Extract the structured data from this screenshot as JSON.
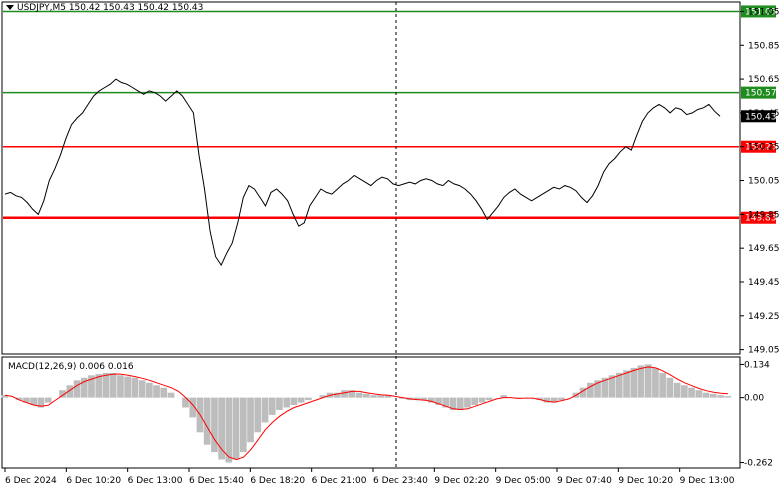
{
  "header": {
    "symbol_line": "USDJPY,M5  150.42 150.43 150.42 150.43",
    "macd_label": "MACD(12,26,9) 0.006 0.016"
  },
  "colors": {
    "green_line": "#1e8c1e",
    "red_line": "#ff0000",
    "price_line": "#000000",
    "macd_hist": "#bdbdbd",
    "signal_line": "#ff0000",
    "grid": "#c8c8c8",
    "current_price_tag_bg": "#000000"
  },
  "price_axis": {
    "ticks": [
      "151.05",
      "150.85",
      "150.65",
      "150.45",
      "150.25",
      "150.05",
      "149.85",
      "149.65",
      "149.45",
      "149.25",
      "149.05"
    ],
    "tick_values": [
      151.05,
      150.85,
      150.65,
      150.45,
      150.25,
      150.05,
      149.85,
      149.65,
      149.45,
      149.25,
      149.05
    ],
    "range": [
      149.03,
      151.1
    ]
  },
  "levels": [
    {
      "label": "151.05",
      "value": 151.05,
      "color": "#1e8c1e",
      "kind": "green"
    },
    {
      "label": "150.57",
      "value": 150.57,
      "color": "#1e8c1e",
      "kind": "green"
    },
    {
      "label": "150.25",
      "value": 150.25,
      "color": "#ff0000",
      "kind": "red"
    },
    {
      "label": "149.83",
      "value": 149.83,
      "color": "#ff0000",
      "kind": "red"
    }
  ],
  "current_price": {
    "label": "150.43",
    "value": 150.43
  },
  "macd_axis": {
    "ticks": [
      "0.134",
      "0.00",
      "-0.262"
    ],
    "tick_values": [
      0.134,
      0.0,
      -0.262
    ],
    "range": [
      -0.28,
      0.16
    ]
  },
  "time_axis": {
    "labels": [
      "6 Dec 2024",
      "6 Dec 10:20",
      "6 Dec 13:00",
      "6 Dec 15:40",
      "6 Dec 18:20",
      "6 Dec 21:00",
      "6 Dec 23:40",
      "9 Dec 02:20",
      "9 Dec 05:00",
      "9 Dec 07:40",
      "9 Dec 10:20",
      "9 Dec 13:00"
    ]
  },
  "chart_data": {
    "type": "line",
    "title": "USDJPY,M5",
    "series": [
      {
        "name": "USDJPY",
        "values": [
          149.97,
          149.98,
          149.96,
          149.95,
          149.92,
          149.88,
          149.85,
          149.93,
          150.05,
          150.12,
          150.2,
          150.3,
          150.38,
          150.42,
          150.45,
          150.5,
          150.55,
          150.58,
          150.6,
          150.62,
          150.65,
          150.63,
          150.62,
          150.6,
          150.58,
          150.56,
          150.58,
          150.57,
          150.55,
          150.52,
          150.55,
          150.58,
          150.55,
          150.5,
          150.45,
          150.2,
          150.0,
          149.75,
          149.6,
          149.55,
          149.62,
          149.68,
          149.8,
          149.95,
          150.02,
          150.0,
          149.95,
          149.9,
          149.98,
          150.0,
          149.97,
          149.93,
          149.85,
          149.78,
          149.8,
          149.9,
          149.95,
          150.0,
          149.98,
          149.97,
          150.0,
          150.03,
          150.05,
          150.08,
          150.06,
          150.04,
          150.02,
          150.05,
          150.07,
          150.06,
          150.03,
          150.02,
          150.03,
          150.04,
          150.03,
          150.05,
          150.06,
          150.05,
          150.03,
          150.02,
          150.05,
          150.03,
          150.02,
          150.0,
          149.97,
          149.93,
          149.88,
          149.82,
          149.86,
          149.9,
          149.95,
          149.98,
          150.0,
          149.97,
          149.95,
          149.93,
          149.95,
          149.97,
          149.99,
          150.01,
          150.0,
          150.02,
          150.01,
          149.99,
          149.95,
          149.92,
          149.96,
          150.02,
          150.1,
          150.15,
          150.18,
          150.22,
          150.25,
          150.23,
          150.32,
          150.4,
          150.45,
          150.48,
          150.5,
          150.48,
          150.45,
          150.48,
          150.47,
          150.44,
          150.45,
          150.47,
          150.48,
          150.5,
          150.46,
          150.43
        ]
      },
      {
        "name": "MACD",
        "values": [
          0.01,
          0.0,
          -0.01,
          -0.02,
          -0.03,
          -0.04,
          -0.02,
          0.0,
          0.03,
          0.05,
          0.07,
          0.08,
          0.09,
          0.095,
          0.1,
          0.1,
          0.09,
          0.085,
          0.08,
          0.07,
          0.06,
          0.05,
          0.04,
          0.02,
          0.0,
          -0.04,
          -0.08,
          -0.14,
          -0.19,
          -0.22,
          -0.25,
          -0.262,
          -0.25,
          -0.22,
          -0.18,
          -0.14,
          -0.1,
          -0.07,
          -0.05,
          -0.04,
          -0.03,
          -0.02,
          -0.01,
          0.0,
          0.01,
          0.02,
          0.02,
          0.03,
          0.03,
          0.02,
          0.015,
          0.01,
          0.01,
          0.01,
          0.0,
          -0.005,
          -0.01,
          -0.01,
          -0.01,
          -0.02,
          -0.03,
          -0.04,
          -0.05,
          -0.05,
          -0.04,
          -0.03,
          -0.02,
          -0.01,
          0.0,
          0.01,
          0.0,
          -0.005,
          0.0,
          0.0,
          -0.01,
          -0.02,
          -0.02,
          -0.01,
          0.0,
          0.02,
          0.04,
          0.06,
          0.07,
          0.08,
          0.09,
          0.1,
          0.11,
          0.12,
          0.13,
          0.134,
          0.12,
          0.1,
          0.08,
          0.06,
          0.05,
          0.04,
          0.03,
          0.02,
          0.015,
          0.01,
          0.006
        ]
      },
      {
        "name": "Signal",
        "values": [
          0.01,
          0.005,
          -0.01,
          -0.02,
          -0.03,
          -0.035,
          -0.03,
          -0.01,
          0.01,
          0.03,
          0.05,
          0.065,
          0.075,
          0.085,
          0.09,
          0.095,
          0.095,
          0.09,
          0.085,
          0.078,
          0.07,
          0.06,
          0.05,
          0.04,
          0.025,
          0.0,
          -0.03,
          -0.07,
          -0.12,
          -0.17,
          -0.21,
          -0.24,
          -0.25,
          -0.24,
          -0.21,
          -0.17,
          -0.13,
          -0.1,
          -0.075,
          -0.055,
          -0.04,
          -0.03,
          -0.02,
          -0.01,
          0.0,
          0.01,
          0.015,
          0.02,
          0.025,
          0.025,
          0.02,
          0.015,
          0.012,
          0.01,
          0.005,
          0.0,
          -0.005,
          -0.008,
          -0.01,
          -0.015,
          -0.025,
          -0.035,
          -0.045,
          -0.048,
          -0.045,
          -0.035,
          -0.025,
          -0.015,
          -0.005,
          0.0,
          0.0,
          -0.003,
          -0.002,
          -0.002,
          -0.008,
          -0.015,
          -0.018,
          -0.012,
          -0.005,
          0.01,
          0.028,
          0.045,
          0.06,
          0.07,
          0.08,
          0.09,
          0.1,
          0.11,
          0.118,
          0.124,
          0.12,
          0.108,
          0.092,
          0.075,
          0.06,
          0.048,
          0.037,
          0.028,
          0.022,
          0.018,
          0.016
        ]
      }
    ],
    "ylim": [
      149.03,
      151.1
    ],
    "macd_ylim": [
      -0.28,
      0.16
    ]
  }
}
